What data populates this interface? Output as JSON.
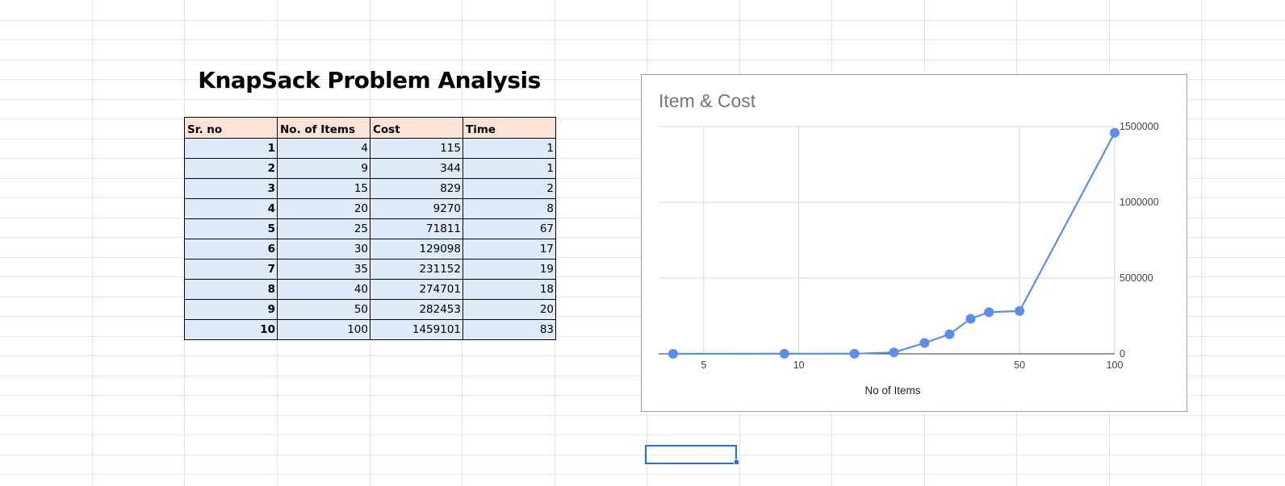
{
  "sheet": {
    "title": "KnapSack Problem Analysis",
    "accent_color": "#1a73e8",
    "header_fill": "#fbe3d6",
    "body_fill": "#deeaf7"
  },
  "table": {
    "headers": [
      "Sr. no",
      "No. of Items",
      "Cost",
      "Time"
    ],
    "rows": [
      [
        "1",
        "4",
        "115",
        "1"
      ],
      [
        "2",
        "9",
        "344",
        "1"
      ],
      [
        "3",
        "15",
        "829",
        "2"
      ],
      [
        "4",
        "20",
        "9270",
        "8"
      ],
      [
        "5",
        "25",
        "71811",
        "67"
      ],
      [
        "6",
        "30",
        "129098",
        "17"
      ],
      [
        "7",
        "35",
        "231152",
        "19"
      ],
      [
        "8",
        "40",
        "274701",
        "18"
      ],
      [
        "9",
        "50",
        "282453",
        "20"
      ],
      [
        "10",
        "100",
        "1459101",
        "83"
      ]
    ]
  },
  "chart_data": {
    "type": "line",
    "title": "Item & Cost",
    "xlabel": "No of Items",
    "ylabel": "",
    "x_scale": "log",
    "y_axis_side": "right",
    "grid": true,
    "color": "#5b8def",
    "x": [
      4,
      9,
      15,
      20,
      25,
      30,
      35,
      40,
      50,
      100
    ],
    "values": [
      115,
      344,
      829,
      9270,
      71811,
      129098,
      231152,
      274701,
      282453,
      1459101
    ],
    "x_ticks": [
      "5",
      "10",
      "50",
      "100"
    ],
    "y_ticks": [
      "0",
      "500000",
      "1000000",
      "1500000"
    ],
    "ylim": [
      0,
      1500000
    ]
  }
}
